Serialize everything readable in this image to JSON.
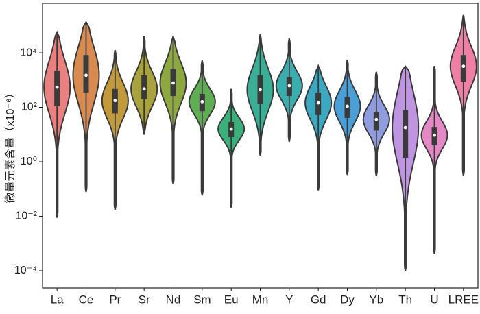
{
  "chart_data": {
    "type": "violin",
    "ylabel": "微量元素含量（x10⁻⁶）",
    "categories": [
      "La",
      "Ce",
      "Pr",
      "Sr",
      "Nd",
      "Sm",
      "Eu",
      "Mn",
      "Y",
      "Gd",
      "Dy",
      "Yb",
      "Th",
      "U",
      "LREE"
    ],
    "colors": [
      "#e8817f",
      "#d98a4e",
      "#c39a3b",
      "#a9a33f",
      "#8da83e",
      "#5fae53",
      "#3cb07a",
      "#3bae96",
      "#3aaeae",
      "#3ca9c0",
      "#4aa0d6",
      "#8f9ce0",
      "#bf94e0",
      "#e589c6",
      "#f07fa5"
    ],
    "min": [
      0.0089,
      0.078,
      0.017,
      10,
      0.15,
      0.058,
      0.021,
      1.7,
      5.4,
      0.09,
      0.33,
      0.3,
      0.0001,
      0.00042,
      0.31
    ],
    "q1": [
      110,
      350,
      60,
      200,
      260,
      72,
      8,
      130,
      260,
      52,
      41,
      14,
      1.4,
      4,
      870
    ],
    "median": [
      550,
      1500,
      175,
      470,
      780,
      160,
      16,
      440,
      620,
      145,
      110,
      36,
      18,
      9.5,
      3200
    ],
    "q3": [
      2200,
      8300,
      470,
      1500,
      2600,
      310,
      29,
      1500,
      1300,
      350,
      240,
      68,
      81,
      19,
      8300
    ],
    "max": [
      57000,
      135000,
      12600,
      40000,
      40000,
      5200,
      470,
      48000,
      34000,
      3300,
      5600,
      2000,
      3200,
      3300,
      245000
    ],
    "log_scale": true,
    "ylim": [
      2.34e-05,
      650000
    ],
    "yticks": [
      {
        "value": 0.0001,
        "label": "10⁻⁴"
      },
      {
        "value": 0.01,
        "label": "10⁻²"
      },
      {
        "value": 1,
        "label": "10⁰"
      },
      {
        "value": 100,
        "label": "10²"
      },
      {
        "value": 10000,
        "label": "10⁴"
      }
    ]
  }
}
